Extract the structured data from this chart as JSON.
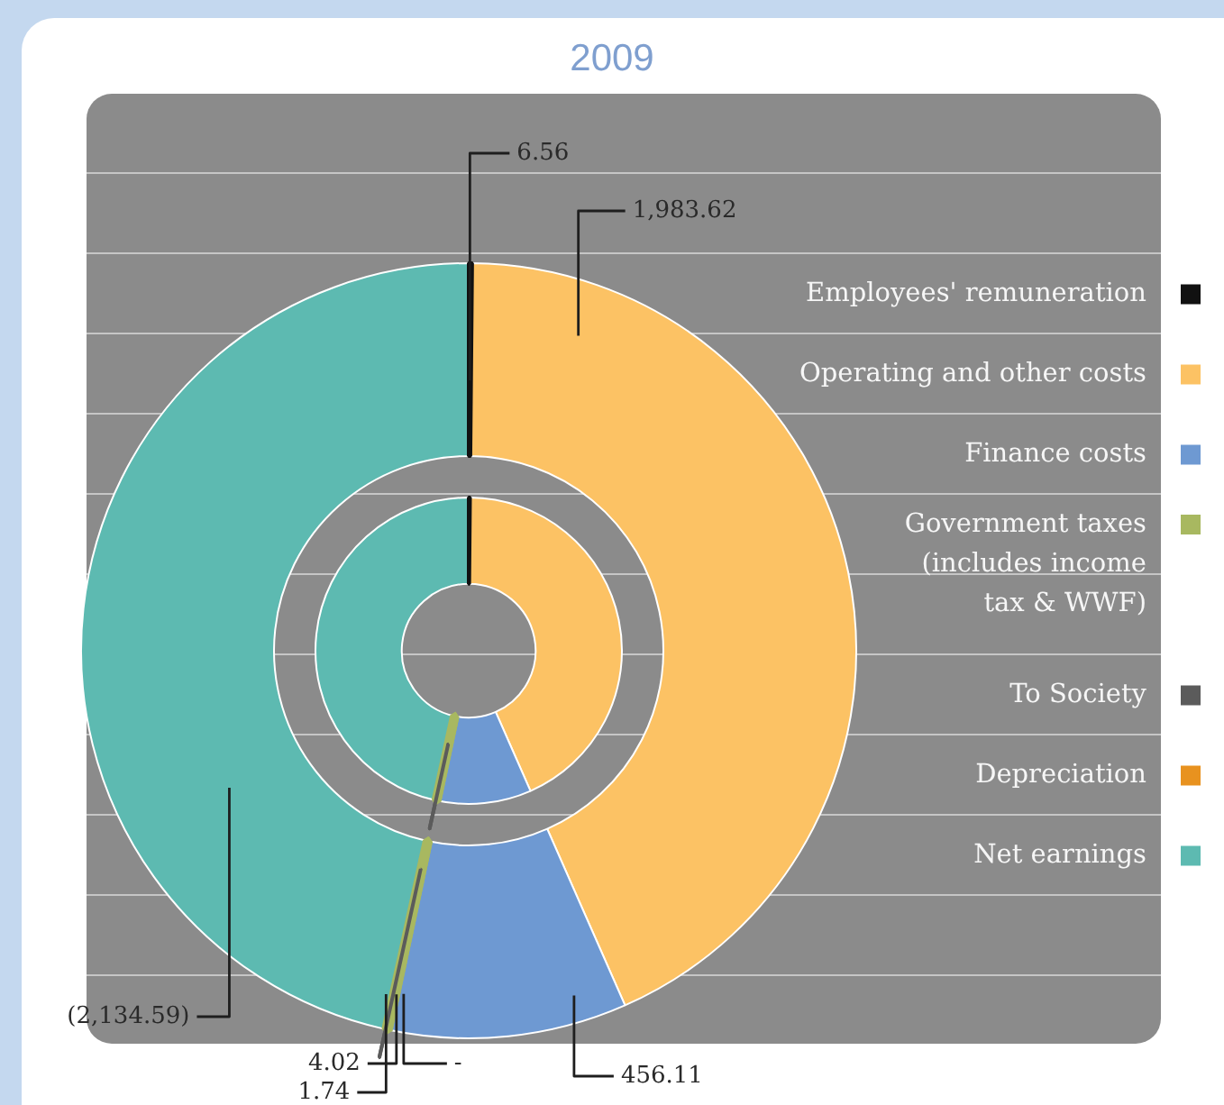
{
  "chart_data": {
    "type": "donut",
    "title": "2009",
    "categories": [
      "Employees' remuneration",
      "Operating and other costs",
      "Finance costs",
      "Government taxes (includes income tax & WWF)",
      "To Society",
      "Depreciation",
      "Net earnings"
    ],
    "colors": [
      "#111111",
      "#fcc264",
      "#6e99d2",
      "#a8b860",
      "#5b5b5b",
      "#e8921f",
      "#5dbab1"
    ],
    "series": [
      {
        "values": [
          6.56,
          1983.62,
          456.11,
          4.02,
          1.74,
          null,
          2134.59
        ],
        "value_labels": [
          "6.56",
          "1,983.62",
          "456.11",
          "4.02",
          "1.74",
          "-",
          "(2,134.59)"
        ]
      },
      {
        "values": [
          0.14,
          43.25,
          9.94,
          0.09,
          0.04,
          null,
          46.54
        ]
      }
    ],
    "legend": "right"
  }
}
